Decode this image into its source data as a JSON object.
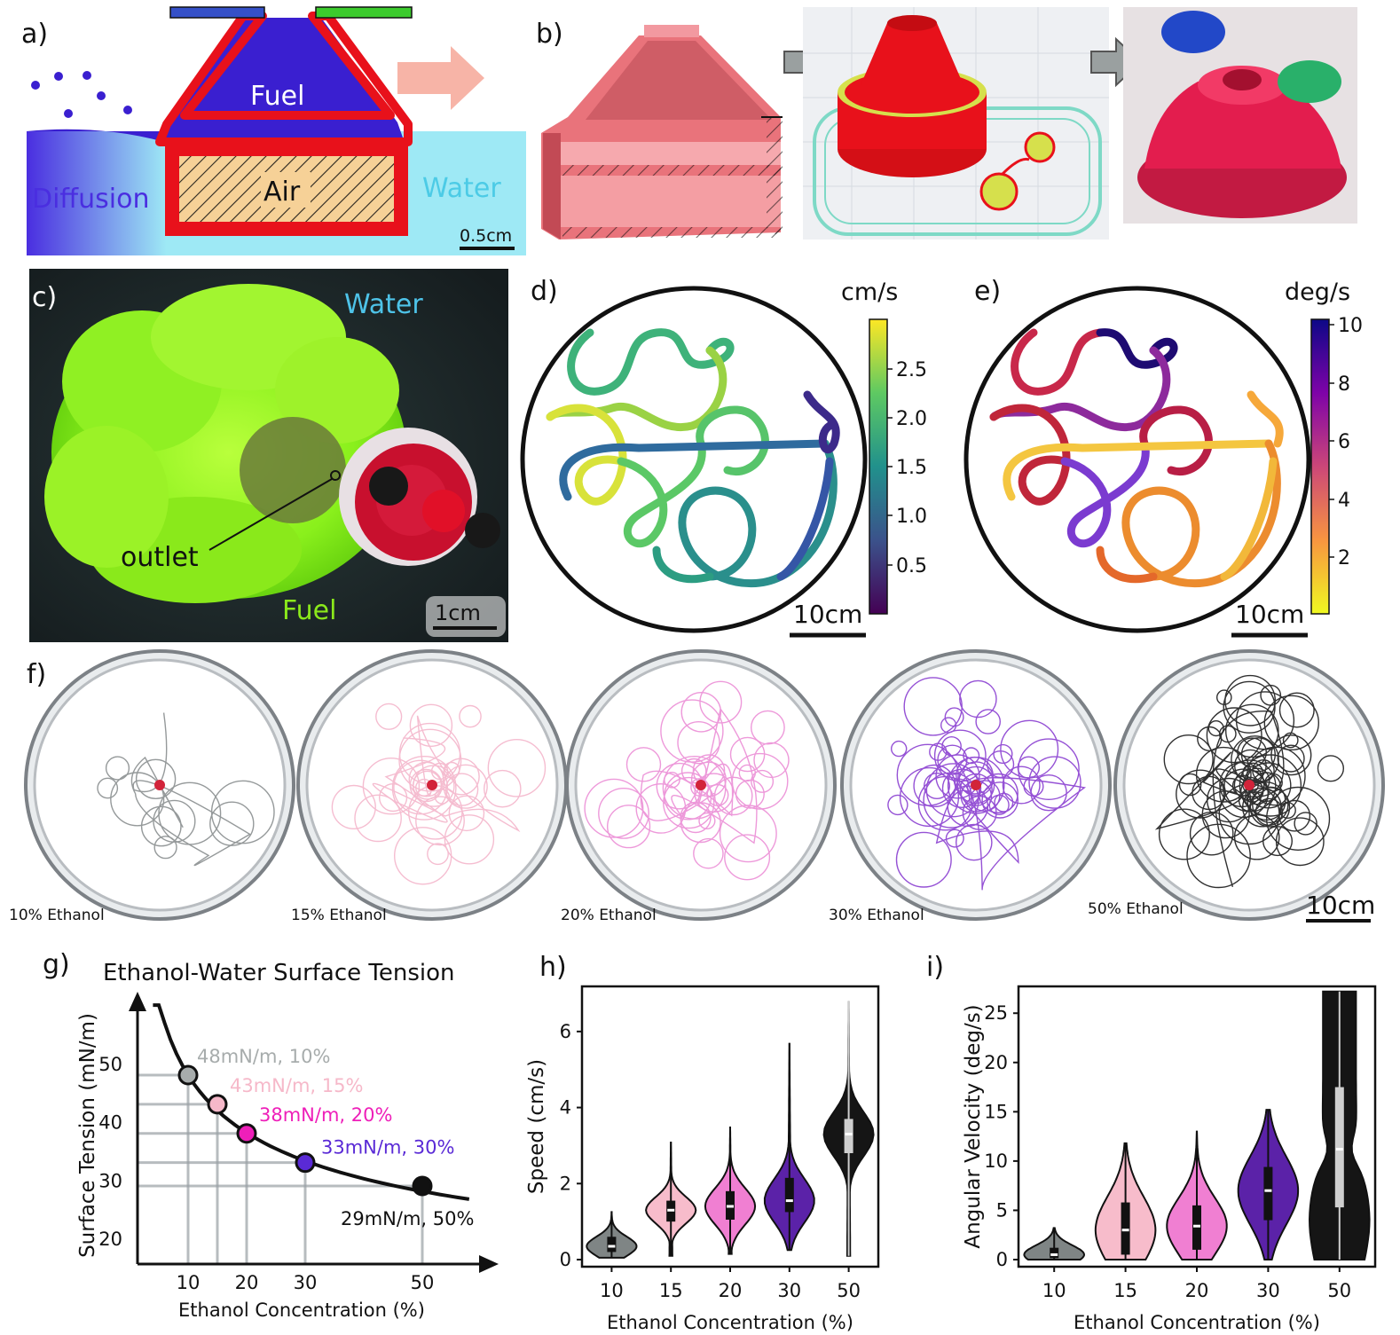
{
  "panel_a": {
    "label": "a)",
    "fuel": "Fuel",
    "air": "Air",
    "water": "Water",
    "diffusion": "Diffusion",
    "scale": "0.5cm",
    "colors": {
      "fuel": "#3a1fd0",
      "shell": "#e8111b",
      "water": "#9ee9f5",
      "air": "#f6d197",
      "lid_left": "#3550c8",
      "lid_right": "#3ccb2d",
      "arrow": "#f7b4a7"
    }
  },
  "panel_b": {
    "label": "b)"
  },
  "panel_c": {
    "label": "c)",
    "water": "Water",
    "outlet": "outlet",
    "fuel": "Fuel",
    "scale": "1cm"
  },
  "panel_d": {
    "label": "d)",
    "unit": "cm/s",
    "ticks": [
      "2.5",
      "2.0",
      "1.5",
      "1.0",
      "0.5"
    ],
    "scale": "10cm",
    "colormap": "viridis"
  },
  "panel_e": {
    "label": "e)",
    "unit": "deg/s",
    "ticks": [
      "10",
      "8",
      "6",
      "4",
      "2"
    ],
    "scale": "10cm",
    "colormap": "plasma-reversed"
  },
  "panel_f": {
    "label": "f)",
    "dishes": [
      {
        "label": "10% Ethanol",
        "color": "#8a8f90"
      },
      {
        "label": "15% Ethanol",
        "color": "#f4b6cc"
      },
      {
        "label": "20% Ethanol",
        "color": "#ec8fd6"
      },
      {
        "label": "30% Ethanol",
        "color": "#8a3fd1"
      },
      {
        "label": "50% Ethanol",
        "color": "#1a1a1a"
      }
    ],
    "scale": "10cm"
  },
  "chart_data": [
    {
      "type": "line",
      "panel": "g)",
      "title": "Ethanol-Water Surface Tension",
      "xlabel": "Ethanol Concentration (%)",
      "ylabel": "Surface Tension (mN/m)",
      "x_ticks": [
        "10",
        "20",
        "30",
        "50"
      ],
      "y_ticks": [
        "20",
        "30",
        "40",
        "50"
      ],
      "points": [
        {
          "x": 10,
          "y": 48,
          "label": "48mN/m, 10%",
          "color": "#a7acac"
        },
        {
          "x": 15,
          "y": 43,
          "label": "43mN/m, 15%",
          "color": "#f6b8c9"
        },
        {
          "x": 20,
          "y": 38,
          "label": "38mN/m, 20%",
          "color": "#ee1fb9"
        },
        {
          "x": 30,
          "y": 33,
          "label": "33mN/m, 30%",
          "color": "#5a2ad6"
        },
        {
          "x": 50,
          "y": 29,
          "label": "29mN/m, 50%",
          "color": "#111111"
        }
      ]
    },
    {
      "type": "violin",
      "panel": "h)",
      "xlabel": "Ethanol Concentration (%)",
      "ylabel": "Speed (cm/s)",
      "categories": [
        "10",
        "15",
        "20",
        "30",
        "50"
      ],
      "y_ticks": [
        "0",
        "2",
        "4",
        "6"
      ],
      "ylim": [
        0,
        7
      ],
      "colors": [
        "#7f8585",
        "#f7bccb",
        "#f07fd2",
        "#5b22a8",
        "#151515"
      ],
      "medians": [
        0.35,
        1.3,
        1.4,
        1.55,
        3.3
      ],
      "q1": [
        0.2,
        1.0,
        1.05,
        1.25,
        2.8
      ],
      "q3": [
        0.6,
        1.55,
        1.8,
        2.15,
        3.7
      ],
      "min": [
        0.05,
        0.1,
        0.15,
        0.25,
        0.1
      ],
      "max": [
        1.25,
        3.1,
        3.5,
        5.7,
        6.8
      ]
    },
    {
      "type": "violin",
      "panel": "i)",
      "xlabel": "Ethanol Concentration (%)",
      "ylabel": "Angular Velocity (deg/s)",
      "categories": [
        "10",
        "15",
        "20",
        "30",
        "50"
      ],
      "y_ticks": [
        "0",
        "5",
        "10",
        "15",
        "20",
        "25"
      ],
      "ylim": [
        0,
        27
      ],
      "colors": [
        "#7f8585",
        "#f7bccb",
        "#f07fd2",
        "#5b22a8",
        "#151515"
      ],
      "medians": [
        0.5,
        3.0,
        3.4,
        7.0,
        11.2
      ],
      "q1": [
        0.15,
        0.5,
        1.0,
        4.0,
        5.3
      ],
      "q3": [
        1.2,
        5.8,
        5.5,
        9.4,
        17.5
      ],
      "min": [
        0.0,
        0.0,
        0.0,
        0.0,
        0.0
      ],
      "max": [
        3.2,
        11.8,
        13.0,
        15.2,
        27.2
      ]
    }
  ]
}
